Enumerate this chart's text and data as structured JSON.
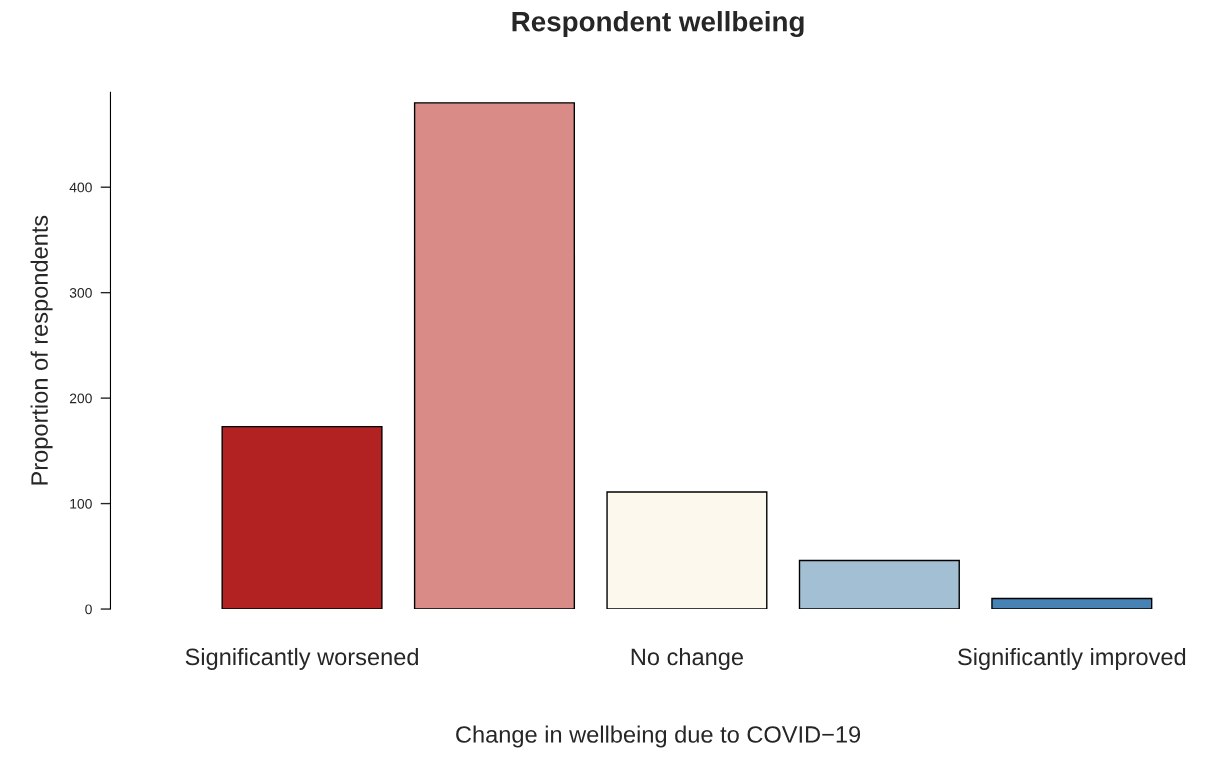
{
  "chart_data": {
    "type": "bar",
    "title": "Respondent wellbeing",
    "xlabel": "Change in wellbeing due to COVID−19",
    "ylabel": "Proportion of respondents",
    "categories": [
      "Significantly worsened",
      null,
      "No change",
      null,
      "Significantly improved"
    ],
    "values": [
      173,
      480,
      111,
      46,
      10
    ],
    "colors": [
      "#b22222",
      "#d98c87",
      "#fdf8ee",
      "#a3bfd4",
      "#4682b4"
    ],
    "ylim": [
      0,
      490
    ],
    "yticks": [
      0,
      100,
      200,
      300,
      400
    ],
    "grid": false,
    "legend": false
  }
}
